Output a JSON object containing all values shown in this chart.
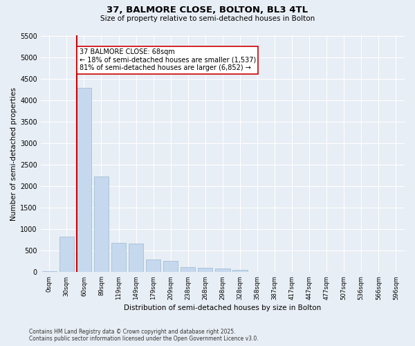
{
  "title_line1": "37, BALMORE CLOSE, BOLTON, BL3 4TL",
  "title_line2": "Size of property relative to semi-detached houses in Bolton",
  "xlabel": "Distribution of semi-detached houses by size in Bolton",
  "ylabel": "Number of semi-detached properties",
  "bar_color": "#c5d8ed",
  "bar_edge_color": "#9ab8d0",
  "background_color": "#e8eef5",
  "grid_color": "#ffffff",
  "categories": [
    "0sqm",
    "30sqm",
    "60sqm",
    "89sqm",
    "119sqm",
    "149sqm",
    "179sqm",
    "209sqm",
    "238sqm",
    "268sqm",
    "298sqm",
    "328sqm",
    "358sqm",
    "387sqm",
    "417sqm",
    "447sqm",
    "477sqm",
    "507sqm",
    "536sqm",
    "566sqm",
    "596sqm"
  ],
  "values": [
    15,
    820,
    4280,
    2230,
    680,
    670,
    290,
    255,
    125,
    105,
    85,
    55,
    10,
    5,
    5,
    0,
    0,
    0,
    0,
    0,
    0
  ],
  "ylim": [
    0,
    5500
  ],
  "yticks": [
    0,
    500,
    1000,
    1500,
    2000,
    2500,
    3000,
    3500,
    4000,
    4500,
    5000,
    5500
  ],
  "red_line_bin": 2,
  "annotation_title": "37 BALMORE CLOSE: 68sqm",
  "annotation_line1": "← 18% of semi-detached houses are smaller (1,537)",
  "annotation_line2": "81% of semi-detached houses are larger (6,852) →",
  "annotation_box_color": "#ffffff",
  "annotation_box_edge": "#cc0000",
  "red_line_color": "#cc0000",
  "footnote1": "Contains HM Land Registry data © Crown copyright and database right 2025.",
  "footnote2": "Contains public sector information licensed under the Open Government Licence v3.0."
}
